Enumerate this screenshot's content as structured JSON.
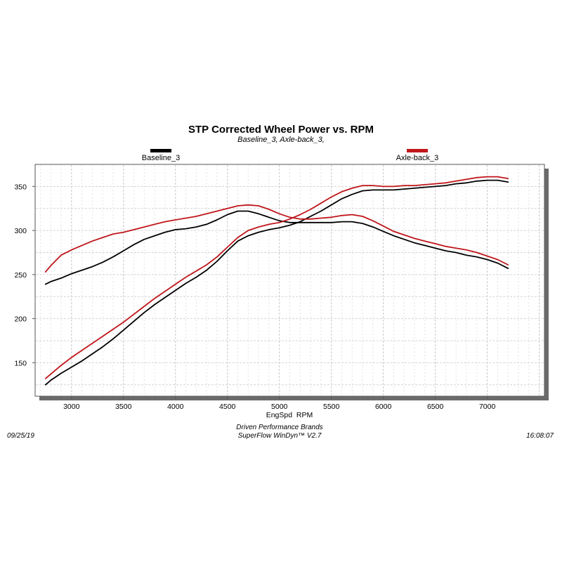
{
  "chart_data": {
    "type": "line",
    "title": "STP Corrected Wheel Power vs. RPM",
    "subtitle": "Baseline_3, Axle-back_3,",
    "xlabel": "EngSpd  RPM",
    "ylabel": "",
    "xlim": [
      2650,
      7550
    ],
    "ylim": [
      112,
      375
    ],
    "xticks": [
      3000,
      3500,
      4000,
      4500,
      5000,
      5500,
      6000,
      6500,
      7000
    ],
    "yticks": [
      150,
      200,
      250,
      300,
      350
    ],
    "grid": true,
    "legend": [
      {
        "name": "Baseline_3",
        "color": "#000000"
      },
      {
        "name": "Axle-back_3",
        "color": "#c0161b"
      }
    ],
    "series": [
      {
        "name": "Baseline_3",
        "role": "power",
        "color": "#000000",
        "x": [
          2750,
          2800,
          2900,
          3000,
          3100,
          3200,
          3300,
          3400,
          3500,
          3600,
          3700,
          3800,
          3900,
          4000,
          4100,
          4200,
          4300,
          4400,
          4500,
          4600,
          4700,
          4800,
          4900,
          5000,
          5100,
          5200,
          5300,
          5400,
          5500,
          5600,
          5700,
          5800,
          5900,
          6000,
          6100,
          6200,
          6300,
          6400,
          6500,
          6600,
          6700,
          6800,
          6900,
          7000,
          7100,
          7200
        ],
        "y": [
          239,
          242,
          246,
          251,
          255,
          259,
          264,
          270,
          277,
          284,
          290,
          294,
          298,
          301,
          302,
          304,
          307,
          312,
          318,
          322,
          322,
          319,
          315,
          311,
          309,
          309,
          309,
          309,
          309,
          310,
          310,
          308,
          304,
          299,
          294,
          290,
          286,
          283,
          280,
          277,
          275,
          272,
          270,
          267,
          263,
          257
        ]
      },
      {
        "name": "Baseline_3",
        "role": "torque",
        "color": "#000000",
        "x": [
          2750,
          2800,
          2900,
          3000,
          3100,
          3200,
          3300,
          3400,
          3500,
          3600,
          3700,
          3800,
          3900,
          4000,
          4100,
          4200,
          4300,
          4400,
          4500,
          4600,
          4700,
          4800,
          4900,
          5000,
          5100,
          5200,
          5300,
          5400,
          5500,
          5600,
          5700,
          5800,
          5900,
          6000,
          6100,
          6200,
          6300,
          6400,
          6500,
          6600,
          6700,
          6800,
          6900,
          7000,
          7100,
          7200
        ],
        "y": [
          125,
          130,
          138,
          145,
          152,
          160,
          168,
          177,
          187,
          197,
          207,
          216,
          224,
          232,
          240,
          247,
          255,
          265,
          277,
          288,
          294,
          298,
          301,
          303,
          306,
          310,
          316,
          322,
          329,
          336,
          341,
          345,
          346,
          346,
          346,
          347,
          348,
          349,
          350,
          351,
          353,
          354,
          356,
          357,
          357,
          355
        ]
      },
      {
        "name": "Axle-back_3",
        "role": "power",
        "color": "#c0161b",
        "x": [
          2750,
          2800,
          2900,
          3000,
          3100,
          3200,
          3300,
          3400,
          3500,
          3600,
          3700,
          3800,
          3900,
          4000,
          4100,
          4200,
          4300,
          4400,
          4500,
          4600,
          4700,
          4800,
          4900,
          5000,
          5100,
          5200,
          5300,
          5400,
          5500,
          5600,
          5700,
          5800,
          5900,
          6000,
          6100,
          6200,
          6300,
          6400,
          6500,
          6600,
          6700,
          6800,
          6900,
          7000,
          7100,
          7200
        ],
        "y": [
          253,
          260,
          272,
          278,
          283,
          288,
          292,
          296,
          298,
          301,
          304,
          307,
          310,
          312,
          314,
          316,
          319,
          322,
          325,
          328,
          329,
          328,
          324,
          319,
          315,
          313,
          313,
          314,
          315,
          317,
          318,
          316,
          311,
          305,
          299,
          295,
          291,
          288,
          285,
          282,
          280,
          278,
          275,
          271,
          267,
          261
        ]
      },
      {
        "name": "Axle-back_3",
        "role": "torque",
        "color": "#c0161b",
        "x": [
          2750,
          2800,
          2900,
          3000,
          3100,
          3200,
          3300,
          3400,
          3500,
          3600,
          3700,
          3800,
          3900,
          4000,
          4100,
          4200,
          4300,
          4400,
          4500,
          4600,
          4700,
          4800,
          4900,
          5000,
          5100,
          5200,
          5300,
          5400,
          5500,
          5600,
          5700,
          5800,
          5900,
          6000,
          6100,
          6200,
          6300,
          6400,
          6500,
          6600,
          6700,
          6800,
          6900,
          7000,
          7100,
          7200
        ],
        "y": [
          132,
          137,
          147,
          156,
          164,
          172,
          180,
          188,
          196,
          205,
          214,
          223,
          231,
          239,
          247,
          254,
          261,
          270,
          281,
          292,
          300,
          304,
          307,
          309,
          313,
          318,
          324,
          331,
          338,
          344,
          348,
          351,
          351,
          350,
          350,
          351,
          351,
          352,
          353,
          354,
          356,
          358,
          360,
          361,
          361,
          359
        ]
      }
    ]
  },
  "footer": {
    "date": "09/25/19",
    "time": "16:08:07",
    "company": "Driven Performance Brands",
    "software": "SuperFlow WinDyn™  V2.7"
  }
}
